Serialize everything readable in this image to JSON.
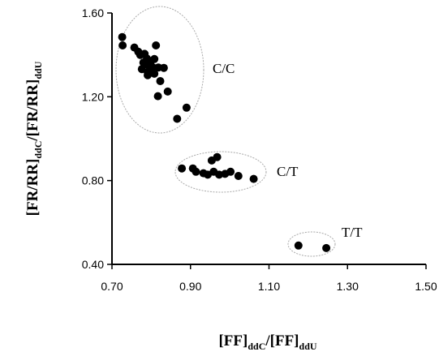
{
  "chart_data": {
    "type": "scatter",
    "title": "",
    "xlabel": {
      "main1": "[FF]",
      "sub1": "ddC",
      "main2": "/[FF]",
      "sub2": "ddU"
    },
    "ylabel": {
      "main1": "[FR/RR]",
      "sub1": "ddC",
      "main2": "/[FR/RR]",
      "sub2": "ddU"
    },
    "xlim": [
      0.7,
      1.5
    ],
    "ylim": [
      0.4,
      1.6
    ],
    "x_ticks": [
      "0.70",
      "0.90",
      "1.10",
      "1.30",
      "1.50"
    ],
    "y_ticks": [
      "0.40",
      "0.80",
      "1.20",
      "1.60"
    ],
    "grid": false,
    "groups": [
      {
        "label": "C/C",
        "points": [
          [
            0.726,
            1.485
          ],
          [
            0.727,
            1.445
          ],
          [
            0.757,
            1.435
          ],
          [
            0.767,
            1.415
          ],
          [
            0.772,
            1.4
          ],
          [
            0.783,
            1.405
          ],
          [
            0.789,
            1.382
          ],
          [
            0.798,
            1.365
          ],
          [
            0.808,
            1.38
          ],
          [
            0.812,
            1.445
          ],
          [
            0.78,
            1.363
          ],
          [
            0.792,
            1.352
          ],
          [
            0.803,
            1.342
          ],
          [
            0.776,
            1.332
          ],
          [
            0.791,
            1.318
          ],
          [
            0.818,
            1.34
          ],
          [
            0.832,
            1.338
          ],
          [
            0.791,
            1.303
          ],
          [
            0.808,
            1.31
          ],
          [
            0.823,
            1.275
          ],
          [
            0.842,
            1.225
          ],
          [
            0.817,
            1.203
          ],
          [
            0.866,
            1.095
          ],
          [
            0.89,
            1.148
          ]
        ]
      },
      {
        "label": "C/T",
        "points": [
          [
            0.878,
            0.858
          ],
          [
            0.906,
            0.858
          ],
          [
            0.914,
            0.842
          ],
          [
            0.933,
            0.835
          ],
          [
            0.944,
            0.828
          ],
          [
            0.959,
            0.842
          ],
          [
            0.973,
            0.828
          ],
          [
            0.988,
            0.832
          ],
          [
            1.002,
            0.842
          ],
          [
            1.022,
            0.822
          ],
          [
            1.061,
            0.808
          ],
          [
            0.954,
            0.896
          ],
          [
            0.968,
            0.912
          ]
        ]
      },
      {
        "label": "T/T",
        "points": [
          [
            1.175,
            0.49
          ],
          [
            1.246,
            0.478
          ]
        ]
      }
    ]
  }
}
